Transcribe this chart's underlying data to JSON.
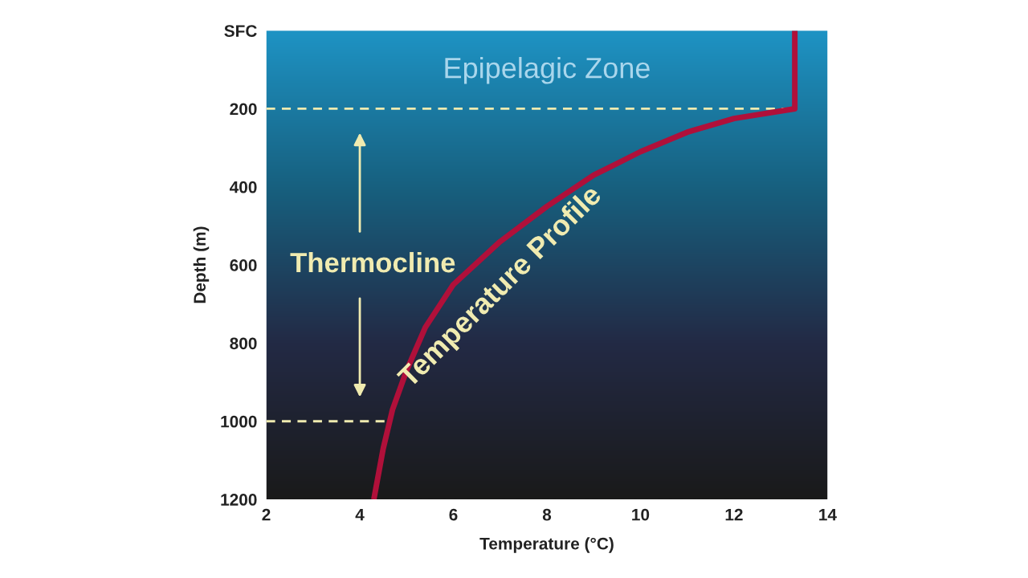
{
  "chart_data": {
    "type": "line",
    "xlabel": "Temperature (°C)",
    "ylabel": "Depth (m)",
    "xlim": [
      2,
      14
    ],
    "xticks": [
      2,
      4,
      6,
      8,
      10,
      12,
      14
    ],
    "ylim": [
      1200,
      0
    ],
    "yticks": [
      {
        "value": 0,
        "label": "SFC"
      },
      200,
      400,
      600,
      800,
      1000,
      1200
    ],
    "grid": false,
    "legend": false,
    "series": [
      {
        "name": "Temperature Profile",
        "color": "#b0103a",
        "x": [
          13.3,
          13.3,
          12.0,
          11.0,
          10.0,
          9.0,
          8.0,
          7.0,
          6.0,
          5.4,
          5.0,
          4.7,
          4.5,
          4.3
        ],
        "values": [
          0,
          200,
          225,
          260,
          310,
          370,
          450,
          540,
          650,
          760,
          870,
          970,
          1070,
          1200
        ]
      }
    ],
    "ref_lines": [
      {
        "axis": "y",
        "value": 200,
        "color": "#f0ebb0",
        "line_style": "dashed"
      },
      {
        "axis": "y",
        "value": 1000,
        "color": "#f0ebb0",
        "line_style": "dashed"
      }
    ],
    "annotations": [
      "Epipelagic Zone",
      "Thermocline"
    ]
  }
}
